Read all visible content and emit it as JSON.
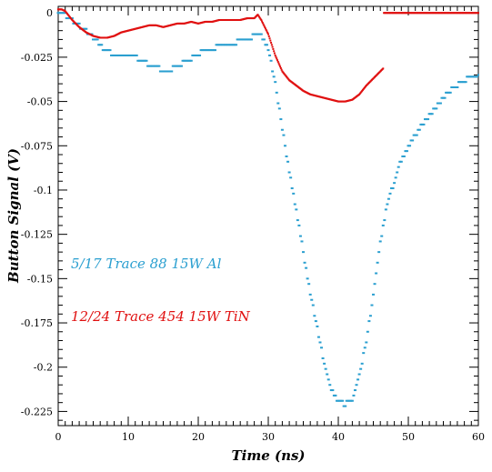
{
  "chart_data": {
    "type": "scatter",
    "title": "",
    "xlabel": "Time (ns)",
    "ylabel": "Button Signal (V)",
    "xlim": [
      0,
      60
    ],
    "ylim": [
      -0.233,
      0.0037
    ],
    "x_ticks": [
      "0",
      "10",
      "20",
      "30",
      "40",
      "50",
      "60"
    ],
    "y_ticks": [
      "0",
      "-0.025",
      "-0.05",
      "-0.075",
      "-0.1",
      "-0.125",
      "-0.15",
      "-0.175",
      "-0.2",
      "-0.225"
    ],
    "grid": false,
    "series": [
      {
        "name": "5/17 Trace 88 15W Al",
        "color": "#2a9fd0",
        "marker": "dash",
        "points": [
          [
            0,
            0
          ],
          [
            1,
            -0.001
          ],
          [
            2,
            -0.004
          ],
          [
            3,
            -0.007
          ],
          [
            4,
            -0.01
          ],
          [
            5,
            -0.014
          ],
          [
            6,
            -0.018
          ],
          [
            7,
            -0.022
          ],
          [
            8,
            -0.023
          ],
          [
            9,
            -0.023
          ],
          [
            10,
            -0.023
          ],
          [
            11,
            -0.025
          ],
          [
            12,
            -0.027
          ],
          [
            13,
            -0.029
          ],
          [
            14,
            -0.031
          ],
          [
            15,
            -0.032
          ],
          [
            16,
            -0.032
          ],
          [
            17,
            -0.03
          ],
          [
            18,
            -0.028
          ],
          [
            19,
            -0.026
          ],
          [
            20,
            -0.023
          ],
          [
            21,
            -0.021
          ],
          [
            22,
            -0.02
          ],
          [
            23,
            -0.019
          ],
          [
            24,
            -0.018
          ],
          [
            25,
            -0.017
          ],
          [
            26,
            -0.016
          ],
          [
            27,
            -0.015
          ],
          [
            28,
            -0.013
          ],
          [
            28.5,
            -0.011
          ],
          [
            29,
            -0.012
          ],
          [
            30,
            -0.02
          ],
          [
            31,
            -0.04
          ],
          [
            32,
            -0.065
          ],
          [
            33,
            -0.09
          ],
          [
            34,
            -0.112
          ],
          [
            35,
            -0.135
          ],
          [
            36,
            -0.158
          ],
          [
            37,
            -0.178
          ],
          [
            38,
            -0.198
          ],
          [
            39,
            -0.212
          ],
          [
            40,
            -0.219
          ],
          [
            41,
            -0.221
          ],
          [
            42,
            -0.218
          ],
          [
            43,
            -0.205
          ],
          [
            44,
            -0.185
          ],
          [
            45,
            -0.16
          ],
          [
            46,
            -0.13
          ],
          [
            47,
            -0.108
          ],
          [
            48,
            -0.095
          ],
          [
            49,
            -0.083
          ],
          [
            50,
            -0.075
          ],
          [
            51,
            -0.069
          ],
          [
            52,
            -0.063
          ],
          [
            53,
            -0.058
          ],
          [
            54,
            -0.053
          ],
          [
            55,
            -0.048
          ],
          [
            56,
            -0.044
          ],
          [
            57,
            -0.041
          ],
          [
            58,
            -0.038
          ],
          [
            59,
            -0.036
          ],
          [
            60,
            -0.035
          ]
        ]
      },
      {
        "name": "12/24 Trace 454 15W TiN",
        "color": "#e01010",
        "marker": "dot",
        "points": [
          [
            0,
            0.002
          ],
          [
            0.5,
            0.002
          ],
          [
            1,
            0.001
          ],
          [
            2,
            -0.004
          ],
          [
            3,
            -0.008
          ],
          [
            4,
            -0.011
          ],
          [
            5,
            -0.013
          ],
          [
            6,
            -0.014
          ],
          [
            7,
            -0.014
          ],
          [
            8,
            -0.013
          ],
          [
            9,
            -0.011
          ],
          [
            10,
            -0.01
          ],
          [
            11,
            -0.009
          ],
          [
            12,
            -0.008
          ],
          [
            13,
            -0.007
          ],
          [
            14,
            -0.007
          ],
          [
            15,
            -0.008
          ],
          [
            16,
            -0.007
          ],
          [
            17,
            -0.006
          ],
          [
            18,
            -0.006
          ],
          [
            19,
            -0.005
          ],
          [
            20,
            -0.006
          ],
          [
            21,
            -0.005
          ],
          [
            22,
            -0.005
          ],
          [
            23,
            -0.004
          ],
          [
            24,
            -0.004
          ],
          [
            25,
            -0.004
          ],
          [
            26,
            -0.004
          ],
          [
            27,
            -0.003
          ],
          [
            28,
            -0.003
          ],
          [
            28.5,
            -0.001
          ],
          [
            29,
            -0.004
          ],
          [
            30,
            -0.012
          ],
          [
            31,
            -0.024
          ],
          [
            32,
            -0.033
          ],
          [
            33,
            -0.038
          ],
          [
            34,
            -0.041
          ],
          [
            35,
            -0.044
          ],
          [
            36,
            -0.046
          ],
          [
            37,
            -0.047
          ],
          [
            38,
            -0.048
          ],
          [
            39,
            -0.049
          ],
          [
            40,
            -0.05
          ],
          [
            41,
            -0.05
          ],
          [
            42,
            -0.049
          ],
          [
            43,
            -0.046
          ],
          [
            44,
            -0.041
          ],
          [
            45,
            -0.037
          ],
          [
            46,
            -0.033
          ],
          [
            46.5,
            -0.031
          ],
          [
            46.51,
            0
          ],
          [
            48,
            0
          ],
          [
            50,
            0
          ],
          [
            52,
            0
          ],
          [
            54,
            0
          ],
          [
            56,
            0
          ],
          [
            58,
            0
          ],
          [
            60,
            0
          ]
        ]
      }
    ]
  }
}
